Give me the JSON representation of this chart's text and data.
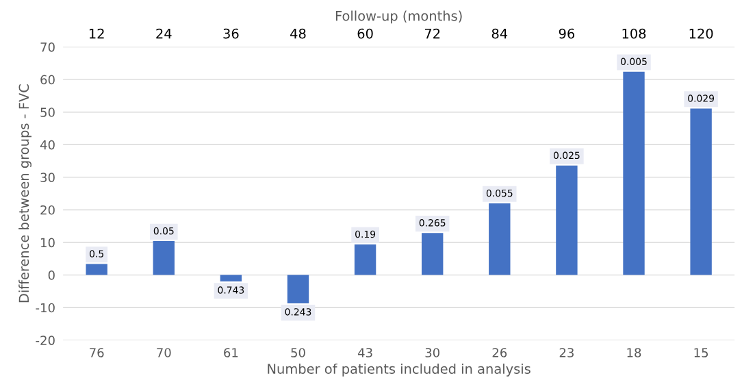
{
  "chart_data": {
    "type": "bar",
    "xlabel": "Number of patients included in analysis",
    "ylabel": "Difference between groups - FVC",
    "x2label": "Follow-up (months)",
    "categories": [
      "76",
      "70",
      "61",
      "50",
      "43",
      "30",
      "26",
      "23",
      "18",
      "15"
    ],
    "values": [
      3.4,
      10.4,
      -2.0,
      -8.7,
      9.4,
      12.9,
      22.0,
      33.6,
      62.4,
      51.1
    ],
    "annotations": [
      {
        "text": "0.5",
        "x": "76",
        "y": 3.4
      },
      {
        "text": "0.05",
        "x": "70",
        "y": 10.4
      },
      {
        "text": "0.743",
        "x": "61",
        "y": -2.0
      },
      {
        "text": "0.243",
        "x": "50",
        "y": -8.7
      },
      {
        "text": "0.19",
        "x": "43",
        "y": 9.4
      },
      {
        "text": "0.265",
        "x": "30",
        "y": 12.9
      },
      {
        "text": "0.055",
        "x": "26",
        "y": 22.0
      },
      {
        "text": "0.025",
        "x": "23",
        "y": 33.6
      },
      {
        "text": "0.005",
        "x": "18",
        "y": 62.4
      },
      {
        "text": "0.029",
        "x": "15",
        "y": 51.1
      }
    ],
    "color": "#4472c4",
    "ylim": [
      -20,
      70
    ],
    "yticks": [
      -20,
      -10,
      0,
      10,
      20,
      30,
      40,
      50,
      60,
      70
    ],
    "x2lim": [
      6,
      126
    ],
    "x2ticks": [
      12,
      24,
      36,
      48,
      60,
      72,
      84,
      96,
      108,
      120
    ],
    "grid": "y"
  }
}
